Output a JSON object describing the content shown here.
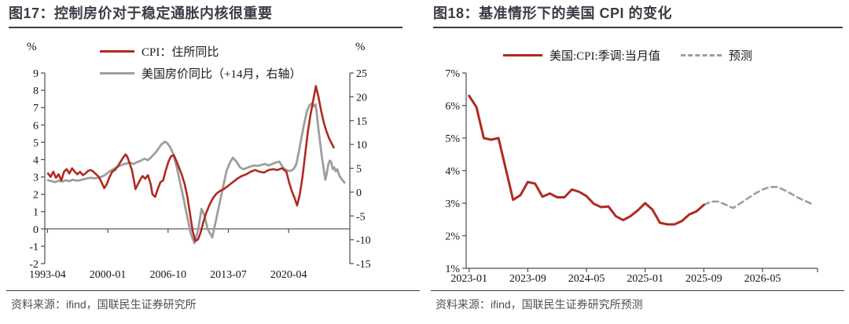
{
  "chart_data": [
    {
      "id": "chart17",
      "type": "line",
      "title": "图17：控制房价对于稳定通胀内核很重要",
      "source": "资料来源：ifind，国联民生证券研究所",
      "left_axis": {
        "unit": "%",
        "range": [
          -2,
          9
        ],
        "ticks": [
          9,
          8,
          7,
          6,
          5,
          4,
          3,
          2,
          1,
          0,
          -1,
          -2
        ],
        "labels": [
          "9",
          "8",
          "7",
          "6",
          "5",
          "4",
          "3",
          "2",
          "1",
          "0",
          "-1",
          "-2"
        ]
      },
      "right_axis": {
        "unit": "%",
        "range": [
          -15,
          25
        ],
        "ticks": [
          25,
          20,
          15,
          10,
          5,
          0,
          -5,
          -10,
          -15
        ],
        "labels": [
          "25",
          "20",
          "15",
          "10",
          "5",
          "0",
          "-5",
          "-10",
          "-15"
        ]
      },
      "x_axis": {
        "range": [
          1992.95,
          2027.1
        ],
        "line_at": 0,
        "end_tick": false,
        "tick_labels": [
          "1993-04",
          "2000-01",
          "2006-10",
          "2013-07",
          "2020-04"
        ],
        "tick_values": [
          1993.25,
          2000.0,
          2006.75,
          2013.5,
          2020.25
        ]
      },
      "series": [
        {
          "name": "CPI：住所同比",
          "axis": "left",
          "color": "#B02A21",
          "style": "solid",
          "width": 2.6,
          "z": 2,
          "x": [
            1993.3,
            1993.6,
            1993.9,
            1994.2,
            1994.5,
            1994.8,
            1995.1,
            1995.4,
            1995.7,
            1996.0,
            1996.3,
            1996.6,
            1996.9,
            1997.2,
            1997.5,
            1997.8,
            1998.1,
            1998.4,
            1998.7,
            1999.0,
            1999.3,
            1999.6,
            1999.9,
            2000.2,
            2000.5,
            2000.8,
            2001.1,
            2001.4,
            2001.7,
            2002.0,
            2002.2,
            2002.4,
            2002.7,
            2002.9,
            2003.1,
            2003.4,
            2003.7,
            2003.9,
            2004.2,
            2004.5,
            2004.8,
            2005.0,
            2005.3,
            2005.6,
            2005.9,
            2006.2,
            2006.5,
            2006.8,
            2007.1,
            2007.4,
            2007.7,
            2008.0,
            2008.3,
            2008.6,
            2008.9,
            2009.2,
            2009.5,
            2009.8,
            2010.1,
            2010.4,
            2010.7,
            2011.0,
            2011.4,
            2011.8,
            2012.2,
            2012.6,
            2013.0,
            2013.5,
            2014.0,
            2014.5,
            2015.0,
            2015.5,
            2016.0,
            2016.5,
            2017.0,
            2017.5,
            2018.0,
            2018.5,
            2019.0,
            2019.5,
            2020.0,
            2020.3,
            2020.6,
            2020.9,
            2021.2,
            2021.5,
            2021.8,
            2022.1,
            2022.4,
            2022.7,
            2023.0,
            2023.3,
            2023.6,
            2023.9,
            2024.2,
            2024.5,
            2024.8,
            2025.1,
            2025.3
          ],
          "y": [
            3.2,
            3.0,
            3.3,
            2.95,
            3.15,
            2.8,
            3.3,
            3.45,
            3.2,
            3.5,
            3.3,
            3.15,
            3.3,
            3.1,
            3.2,
            3.35,
            3.4,
            3.3,
            3.15,
            3.0,
            2.7,
            2.35,
            2.6,
            3.0,
            3.3,
            3.4,
            3.6,
            3.85,
            4.1,
            4.3,
            4.15,
            3.85,
            3.4,
            2.9,
            2.3,
            2.6,
            2.9,
            3.05,
            2.9,
            3.1,
            2.6,
            2.0,
            1.85,
            2.3,
            2.7,
            2.8,
            3.4,
            3.9,
            4.2,
            4.25,
            3.9,
            3.5,
            3.1,
            2.6,
            1.9,
            0.9,
            -0.1,
            -0.7,
            -0.6,
            -0.2,
            0.4,
            0.9,
            1.4,
            1.8,
            2.05,
            2.2,
            2.3,
            2.5,
            2.7,
            2.9,
            3.05,
            3.15,
            3.3,
            3.4,
            3.3,
            3.25,
            3.4,
            3.45,
            3.4,
            3.5,
            3.3,
            2.7,
            2.2,
            1.8,
            1.35,
            2.0,
            3.0,
            4.3,
            5.6,
            6.6,
            7.4,
            8.25,
            7.6,
            6.8,
            6.1,
            5.6,
            5.2,
            4.9,
            4.7
          ]
        },
        {
          "name": "美国房价同比（+14月，右轴）",
          "axis": "right",
          "color": "#9E9E9E",
          "style": "solid",
          "width": 2.8,
          "z": 1,
          "x": [
            1993.3,
            1993.7,
            1994.1,
            1994.5,
            1994.9,
            1995.3,
            1995.7,
            1996.1,
            1996.5,
            1996.9,
            1997.3,
            1997.7,
            1998.1,
            1998.5,
            1998.9,
            1999.3,
            1999.7,
            2000.1,
            2000.5,
            2000.9,
            2001.3,
            2001.7,
            2002.1,
            2002.5,
            2002.9,
            2003.3,
            2003.7,
            2004.1,
            2004.5,
            2004.9,
            2005.3,
            2005.7,
            2006.0,
            2006.4,
            2006.7,
            2007.0,
            2007.3,
            2007.7,
            2008.1,
            2008.5,
            2008.9,
            2009.3,
            2009.7,
            2010.1,
            2010.5,
            2010.8,
            2011.2,
            2011.7,
            2012.1,
            2012.5,
            2012.9,
            2013.3,
            2013.7,
            2014.0,
            2014.4,
            2014.8,
            2015.2,
            2015.6,
            2016.0,
            2016.4,
            2016.8,
            2017.2,
            2017.6,
            2018.0,
            2018.4,
            2018.8,
            2019.2,
            2019.6,
            2020.0,
            2020.4,
            2020.8,
            2021.1,
            2021.4,
            2021.7,
            2022.0,
            2022.3,
            2022.6,
            2022.9,
            2023.1,
            2023.25,
            2023.4,
            2023.6,
            2023.8,
            2024.0,
            2024.2,
            2024.35,
            2024.5,
            2024.7,
            2024.85,
            2025.0,
            2025.2,
            2025.35,
            2025.5,
            2025.7,
            2025.85,
            2026.0,
            2026.25,
            2026.5
          ],
          "y": [
            2.5,
            2.3,
            2.1,
            2.4,
            2.2,
            2.5,
            2.3,
            2.6,
            2.4,
            2.5,
            2.7,
            2.9,
            3.0,
            2.9,
            3.0,
            3.2,
            3.6,
            4.2,
            4.7,
            5.1,
            5.5,
            5.8,
            6.0,
            6.2,
            5.9,
            6.3,
            6.6,
            7.0,
            6.7,
            7.4,
            8.2,
            9.2,
            10.0,
            10.6,
            10.2,
            9.4,
            8.2,
            5.4,
            2.0,
            -1.5,
            -5.2,
            -8.8,
            -10.7,
            -8.0,
            -3.5,
            -4.8,
            -7.8,
            -9.5,
            -6.0,
            -2.5,
            1.0,
            4.5,
            6.3,
            7.2,
            6.4,
            5.2,
            4.8,
            5.1,
            5.4,
            5.6,
            5.5,
            5.7,
            5.9,
            5.6,
            5.9,
            6.2,
            6.4,
            5.2,
            4.6,
            4.4,
            4.8,
            5.8,
            8.5,
            11.5,
            14.5,
            17.0,
            18.3,
            18.65,
            18.0,
            18.4,
            16.5,
            13.0,
            10.0,
            7.0,
            4.5,
            2.6,
            3.8,
            5.8,
            6.6,
            6.4,
            4.8,
            5.2,
            4.4,
            4.8,
            3.8,
            3.2,
            2.6,
            2.0
          ]
        }
      ]
    },
    {
      "id": "chart18",
      "type": "line",
      "title": "图18：基准情形下的美国 CPI 的变化",
      "source": "资料来源：ifind，国联民生证券研究所预测",
      "left_axis": {
        "unit": "%",
        "range": [
          1,
          7
        ],
        "ticks": [
          7,
          6,
          5,
          4,
          3,
          2,
          1
        ],
        "labels": [
          "7%",
          "6%",
          "5%",
          "4%",
          "3%",
          "2%",
          "1%"
        ]
      },
      "x_axis": {
        "range": [
          -0.4,
          47.5
        ],
        "line_at": 1,
        "end_tick": true,
        "tick_labels": [
          "2023-01",
          "2023-09",
          "2024-05",
          "2025-01",
          "2025-09",
          "2026-05"
        ],
        "tick_values": [
          0,
          8,
          16,
          24,
          32,
          40
        ]
      },
      "series": [
        {
          "name": "美国:CPI:季调:当月值",
          "axis": "left",
          "color": "#B02A21",
          "style": "solid",
          "width": 3,
          "z": 2,
          "x": [
            0,
            1,
            2,
            3,
            4,
            5,
            6,
            7,
            8,
            9,
            10,
            11,
            12,
            13,
            14,
            15,
            16,
            17,
            18,
            19,
            20,
            21,
            22,
            23,
            24,
            25,
            26,
            27,
            28,
            29,
            30,
            31,
            32
          ],
          "y": [
            6.3,
            5.95,
            5.0,
            4.95,
            5.0,
            4.05,
            3.1,
            3.25,
            3.65,
            3.6,
            3.2,
            3.3,
            3.18,
            3.18,
            3.42,
            3.35,
            3.22,
            2.98,
            2.88,
            2.9,
            2.6,
            2.48,
            2.6,
            2.78,
            3.0,
            2.8,
            2.4,
            2.35,
            2.35,
            2.45,
            2.65,
            2.75,
            2.95
          ]
        },
        {
          "name": "预测",
          "axis": "left",
          "color": "#9E9E9E",
          "style": "dashed",
          "width": 2.6,
          "z": 1,
          "x": [
            32,
            33,
            34,
            35,
            36,
            37,
            38,
            39,
            40,
            41,
            42,
            43,
            44,
            45,
            46,
            47
          ],
          "y": [
            2.95,
            3.05,
            3.05,
            2.95,
            2.85,
            3.0,
            3.15,
            3.3,
            3.42,
            3.5,
            3.5,
            3.4,
            3.28,
            3.15,
            3.05,
            2.95
          ]
        }
      ]
    }
  ]
}
